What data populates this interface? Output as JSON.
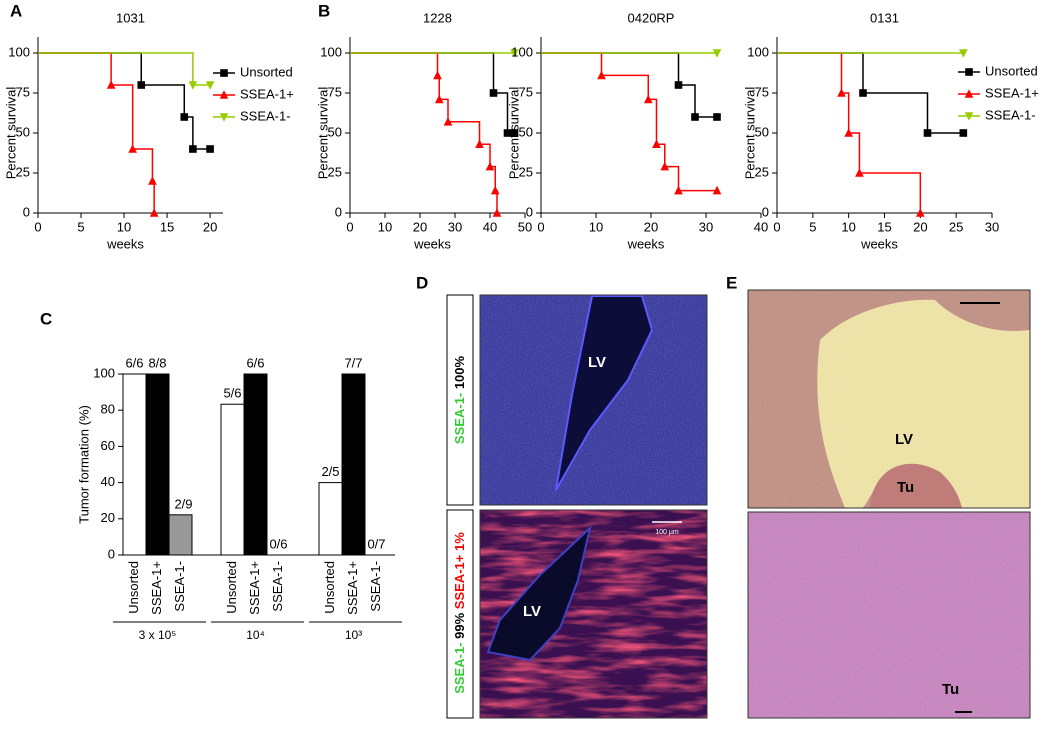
{
  "panels": [
    "A",
    "B",
    "C",
    "D",
    "E"
  ],
  "chart_data": [
    {
      "type": "line",
      "step": true,
      "title": "1031",
      "xlabel": "weeks",
      "ylabel": "Percent survival",
      "xlim": [
        0,
        21.5
      ],
      "xticks": [
        0,
        5,
        10,
        15,
        20
      ],
      "ylim": [
        0,
        110
      ],
      "yticks": [
        0,
        25,
        50,
        75,
        100
      ],
      "legend": "upper right",
      "series": [
        {
          "name": "Unsorted",
          "color": "#000000",
          "marker": "square",
          "x": [
            0,
            12,
            17,
            18,
            20
          ],
          "values": [
            100,
            80,
            60,
            40,
            40
          ]
        },
        {
          "name": "SSEA-1+",
          "color": "#ff0000",
          "marker": "triangle-up",
          "x": [
            0,
            8.5,
            11,
            13.3,
            13.5
          ],
          "values": [
            100,
            80,
            40,
            20,
            0
          ]
        },
        {
          "name": "SSEA-1-",
          "color": "#99cc00",
          "marker": "triangle-down",
          "x": [
            0,
            18,
            20
          ],
          "values": [
            100,
            80,
            80
          ]
        }
      ]
    },
    {
      "type": "line",
      "step": true,
      "title": "1228",
      "xlabel": "weeks",
      "ylabel": "Percent survival",
      "xlim": [
        0,
        50
      ],
      "xticks": [
        0,
        10,
        20,
        30,
        40,
        50
      ],
      "ylim": [
        0,
        110
      ],
      "yticks": [
        0,
        25,
        50,
        75,
        100
      ],
      "series": [
        {
          "name": "Unsorted",
          "color": "#000000",
          "marker": "square",
          "x": [
            0,
            41,
            45,
            47
          ],
          "values": [
            100,
            75,
            50,
            50
          ]
        },
        {
          "name": "SSEA-1+",
          "color": "#ff0000",
          "marker": "triangle-up",
          "x": [
            0,
            25,
            25.5,
            28,
            37,
            40,
            41.5,
            42
          ],
          "values": [
            100,
            86,
            71,
            57,
            43,
            29,
            14,
            0
          ]
        },
        {
          "name": "SSEA-1-",
          "color": "#99cc00",
          "marker": "triangle-down",
          "x": [
            0,
            47
          ],
          "values": [
            100,
            100
          ]
        }
      ]
    },
    {
      "type": "line",
      "step": true,
      "title": "0420RP",
      "xlabel": "weeks",
      "ylabel": "Percent survival",
      "xlim": [
        0,
        40
      ],
      "xticks": [
        0,
        10,
        20,
        30,
        40
      ],
      "ylim": [
        0,
        110
      ],
      "yticks": [
        0,
        25,
        50,
        75,
        100
      ],
      "series": [
        {
          "name": "Unsorted",
          "color": "#000000",
          "marker": "square",
          "x": [
            0,
            25,
            28,
            32
          ],
          "values": [
            100,
            80,
            60,
            60
          ]
        },
        {
          "name": "SSEA-1+",
          "color": "#ff0000",
          "marker": "triangle-up",
          "x": [
            0,
            11,
            19.5,
            21,
            22.5,
            25,
            32
          ],
          "values": [
            100,
            86,
            71,
            43,
            29,
            14,
            14
          ]
        },
        {
          "name": "SSEA-1-",
          "color": "#99cc00",
          "marker": "triangle-down",
          "x": [
            0,
            32
          ],
          "values": [
            100,
            100
          ]
        }
      ]
    },
    {
      "type": "line",
      "step": true,
      "title": "0131",
      "xlabel": "weeks",
      "ylabel": "Percent survival",
      "xlim": [
        0,
        30
      ],
      "xticks": [
        0,
        5,
        10,
        15,
        20,
        25,
        30
      ],
      "ylim": [
        0,
        110
      ],
      "yticks": [
        0,
        25,
        50,
        75,
        100
      ],
      "legend": "upper right",
      "series": [
        {
          "name": "Unsorted",
          "color": "#000000",
          "marker": "square",
          "x": [
            0,
            12,
            21,
            26
          ],
          "values": [
            100,
            75,
            50,
            50
          ]
        },
        {
          "name": "SSEA-1+",
          "color": "#ff0000",
          "marker": "triangle-up",
          "x": [
            0,
            9,
            10,
            11.5,
            20
          ],
          "values": [
            100,
            75,
            50,
            25,
            0
          ]
        },
        {
          "name": "SSEA-1-",
          "color": "#99cc00",
          "marker": "triangle-down",
          "x": [
            0,
            26
          ],
          "values": [
            100,
            100
          ]
        }
      ]
    },
    {
      "type": "bar",
      "ylabel": "Tumor formation (%)",
      "ylim": [
        0,
        100
      ],
      "yticks": [
        0,
        20,
        40,
        60,
        80,
        100
      ],
      "categories": [
        "3 x 10⁵",
        "10⁴",
        "10³"
      ],
      "series": [
        {
          "name": "Unsorted",
          "color": "#ffffff",
          "values": [
            100,
            83.3,
            40
          ],
          "value_labels": [
            "6/6",
            "5/6",
            "2/5"
          ]
        },
        {
          "name": "SSEA-1+",
          "color": "#000000",
          "values": [
            100,
            100,
            100
          ],
          "value_labels": [
            "8/8",
            "6/6",
            "7/7"
          ]
        },
        {
          "name": "SSEA-1-",
          "color": "#999999",
          "values": [
            22.2,
            0,
            0
          ],
          "value_labels": [
            "2/9",
            "0/6",
            "0/7"
          ]
        }
      ]
    }
  ],
  "images": {
    "D": {
      "top": {
        "label": "LV",
        "side": [
          {
            "text": "SSEA-1-",
            "color": "#33cc33"
          },
          {
            "text": "100%",
            "color": "#000000"
          }
        ]
      },
      "bottom": {
        "label": "LV",
        "scale": "100 µm",
        "side": [
          {
            "text": "SSEA-1-",
            "color": "#33cc33"
          },
          {
            "text": "99%",
            "color": "#000000"
          },
          {
            "text": "SSEA-1+",
            "color": "#ff0000"
          },
          {
            "text": "1%",
            "color": "#ff0000"
          }
        ]
      }
    },
    "E": {
      "top": {
        "labels": [
          "LV",
          "Tu"
        ]
      },
      "bottom": {
        "label": "Tu"
      }
    }
  }
}
